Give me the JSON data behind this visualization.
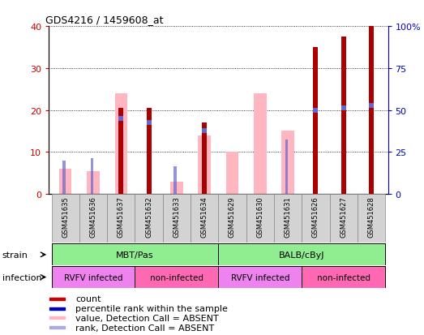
{
  "title": "GDS4216 / 1459608_at",
  "samples": [
    "GSM451635",
    "GSM451636",
    "GSM451637",
    "GSM451632",
    "GSM451633",
    "GSM451634",
    "GSM451629",
    "GSM451630",
    "GSM451631",
    "GSM451626",
    "GSM451627",
    "GSM451628"
  ],
  "count_values": [
    0,
    0,
    20.5,
    20.5,
    0,
    17,
    0,
    0,
    0,
    35,
    37.5,
    40
  ],
  "pink_values": [
    6,
    5.5,
    24,
    0,
    3,
    14,
    10,
    24,
    15,
    0,
    0,
    0
  ],
  "blue_rank_values": [
    8,
    8.5,
    18,
    17,
    6.5,
    15,
    0,
    0,
    13,
    20,
    20.5,
    21
  ],
  "ylim_left": [
    0,
    40
  ],
  "ylim_right": [
    0,
    100
  ],
  "yticks_left": [
    0,
    10,
    20,
    30,
    40
  ],
  "yticks_right": [
    0,
    25,
    50,
    75,
    100
  ],
  "ytick_labels_right": [
    "0",
    "25",
    "50",
    "75",
    "100%"
  ],
  "strain_groups": [
    {
      "label": "MBT/Pas",
      "start": 0,
      "end": 6,
      "color": "#90EE90"
    },
    {
      "label": "BALB/cByJ",
      "start": 6,
      "end": 12,
      "color": "#90EE90"
    }
  ],
  "infection_groups": [
    {
      "label": "RVFV infected",
      "start": 0,
      "end": 3,
      "color": "#EE82EE"
    },
    {
      "label": "non-infected",
      "start": 3,
      "end": 6,
      "color": "#FF69B4"
    },
    {
      "label": "RVFV infected",
      "start": 6,
      "end": 9,
      "color": "#EE82EE"
    },
    {
      "label": "non-infected",
      "start": 9,
      "end": 12,
      "color": "#FF69B4"
    }
  ],
  "legend_items": [
    {
      "color": "#CC0000",
      "label": "count"
    },
    {
      "color": "#0000CC",
      "label": "percentile rank within the sample"
    },
    {
      "color": "#FFB6C1",
      "label": "value, Detection Call = ABSENT"
    },
    {
      "color": "#AAAADD",
      "label": "rank, Detection Call = ABSENT"
    }
  ],
  "count_color": "#AA0000",
  "pink_color": "#FFB6C1",
  "blue_sq_color": "#6666CC",
  "left_axis_color": "#CC0000",
  "right_axis_color": "#0000CC",
  "bg_color": "#FFFFFF",
  "sample_box_color": "#D3D3D3"
}
